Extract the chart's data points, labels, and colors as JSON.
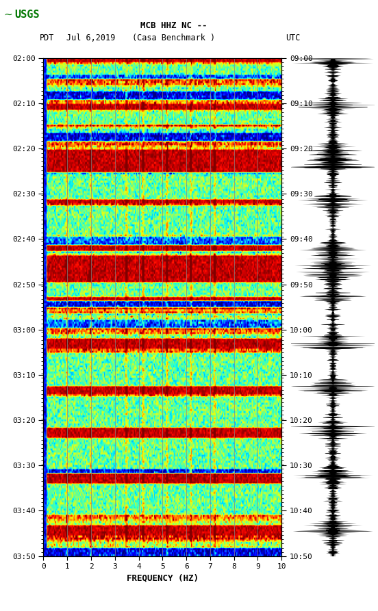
{
  "title_line1": "MCB HHZ NC --",
  "title_line2": "(Casa Benchmark )",
  "date_label": "Jul 6,2019",
  "left_timezone": "PDT",
  "right_timezone": "UTC",
  "freq_min": 0,
  "freq_max": 10,
  "freq_label": "FREQUENCY (HZ)",
  "time_left_labels": [
    "02:00",
    "02:10",
    "02:20",
    "02:30",
    "02:40",
    "02:50",
    "03:00",
    "03:10",
    "03:20",
    "03:30",
    "03:40",
    "03:50"
  ],
  "time_right_labels": [
    "09:00",
    "09:10",
    "09:20",
    "09:30",
    "09:40",
    "09:50",
    "10:00",
    "10:10",
    "10:20",
    "10:30",
    "10:40",
    "10:50"
  ],
  "n_time_rows": 240,
  "n_freq_cols": 200,
  "background_color": "#ffffff",
  "spectrogram_cmap": "jet",
  "usgs_logo_color": "#007700",
  "grid_line_freqs": [
    1,
    2,
    3,
    4,
    5,
    6,
    7,
    8,
    9
  ],
  "seismogram_color": "#000000",
  "fig_width": 5.52,
  "fig_height": 8.93,
  "fig_dpi": 100
}
